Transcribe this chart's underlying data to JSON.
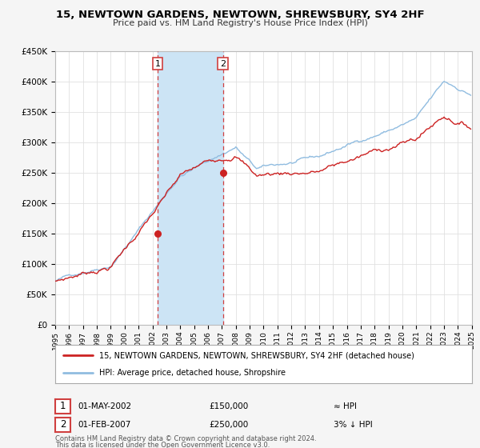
{
  "title": "15, NEWTOWN GARDENS, NEWTOWN, SHREWSBURY, SY4 2HF",
  "subtitle": "Price paid vs. HM Land Registry's House Price Index (HPI)",
  "legend_line1": "15, NEWTOWN GARDENS, NEWTOWN, SHREWSBURY, SY4 2HF (detached house)",
  "legend_line2": "HPI: Average price, detached house, Shropshire",
  "footnote1": "Contains HM Land Registry data © Crown copyright and database right 2024.",
  "footnote2": "This data is licensed under the Open Government Licence v3.0.",
  "sale1_date": "01-MAY-2002",
  "sale1_price": "£150,000",
  "sale1_hpi": "≈ HPI",
  "sale2_date": "01-FEB-2007",
  "sale2_price": "£250,000",
  "sale2_hpi": "3% ↓ HPI",
  "sale1_year": 2002.37,
  "sale1_value": 150000,
  "sale2_year": 2007.08,
  "sale2_value": 250000,
  "vline1_x": 2002.37,
  "vline2_x": 2007.08,
  "shade_color": "#cce4f5",
  "vline_color": "#d04040",
  "hpi_color": "#90bce0",
  "price_color": "#cc2222",
  "dot_color": "#cc2222",
  "ylim_min": 0,
  "ylim_max": 450000,
  "xlim_min": 1995,
  "xlim_max": 2025,
  "background_color": "#f5f5f5",
  "plot_bg_color": "#ffffff",
  "grid_color": "#e0e0e0"
}
